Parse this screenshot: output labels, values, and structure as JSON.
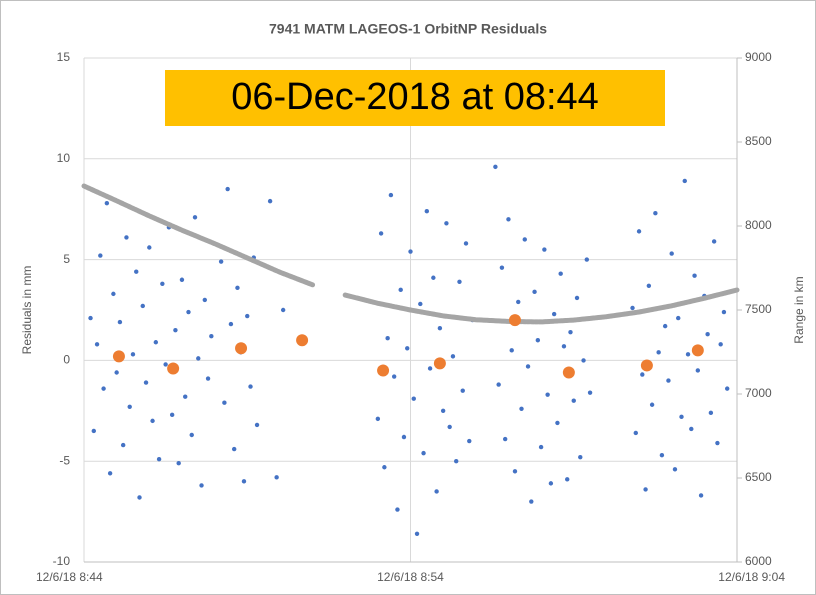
{
  "chart_data": {
    "type": "scatter",
    "title": "7941 MATM LAGEOS-1 OrbitNP Residuals",
    "annotation": "06-Dec-2018 at 08:44",
    "ylabel": "Residuals in mm",
    "y2label": "Range in km",
    "xlim": [
      524,
      544
    ],
    "xticks": [
      {
        "value": 524,
        "label": "12/6/18 8:44"
      },
      {
        "value": 534,
        "label": "12/6/18 8:54"
      },
      {
        "value": 544,
        "label": "12/6/18 9:04"
      }
    ],
    "ylim": [
      -10,
      15
    ],
    "yticks": [
      -10,
      -5,
      0,
      5,
      10,
      15
    ],
    "y2lim": [
      6000,
      9000
    ],
    "y2ticks": [
      6000,
      6500,
      7000,
      7500,
      8000,
      8500,
      9000
    ],
    "grid": true,
    "series": [
      {
        "color": "#4472c4",
        "marker": "dot",
        "x": [
          524.2,
          524.3,
          524.4,
          524.5,
          524.6,
          524.7,
          524.8,
          524.9,
          525.0,
          525.1,
          525.2,
          525.3,
          525.4,
          525.5,
          525.6,
          525.7,
          525.8,
          525.9,
          526.0,
          526.1,
          526.2,
          526.3,
          526.4,
          526.5,
          526.6,
          526.7,
          526.8,
          526.9,
          527.0,
          527.1,
          527.2,
          527.3,
          527.4,
          527.5,
          527.6,
          527.7,
          527.8,
          527.9,
          528.2,
          528.3,
          528.4,
          528.5,
          528.6,
          528.7,
          528.8,
          528.9,
          529.0,
          529.1,
          529.2,
          529.3,
          529.7,
          529.9,
          530.1,
          533.0,
          533.1,
          533.2,
          533.3,
          533.4,
          533.5,
          533.6,
          533.7,
          533.8,
          533.9,
          534.0,
          534.1,
          534.2,
          534.3,
          534.4,
          534.5,
          534.6,
          534.7,
          534.8,
          534.9,
          535.0,
          535.1,
          535.2,
          535.3,
          535.4,
          535.5,
          535.6,
          535.7,
          535.8,
          535.9,
          536.6,
          536.7,
          536.8,
          536.9,
          537.0,
          537.1,
          537.2,
          537.3,
          537.4,
          537.5,
          537.6,
          537.7,
          537.8,
          537.9,
          538.0,
          538.1,
          538.2,
          538.3,
          538.4,
          538.5,
          538.6,
          538.7,
          538.8,
          538.9,
          539.0,
          539.1,
          539.2,
          539.3,
          539.4,
          539.5,
          540.8,
          540.9,
          541.0,
          541.1,
          541.2,
          541.3,
          541.4,
          541.5,
          541.6,
          541.7,
          541.8,
          541.9,
          542.0,
          542.1,
          542.2,
          542.3,
          542.4,
          542.5,
          542.6,
          542.7,
          542.8,
          542.9,
          543.0,
          543.1,
          543.2,
          543.3,
          543.4,
          543.5,
          543.6,
          543.7
        ],
        "values": [
          2.1,
          -3.5,
          0.8,
          5.2,
          -1.4,
          7.8,
          -5.6,
          3.3,
          -0.6,
          1.9,
          -4.2,
          6.1,
          -2.3,
          0.3,
          4.4,
          -6.8,
          2.7,
          -1.1,
          5.6,
          -3.0,
          0.9,
          -4.9,
          3.8,
          -0.2,
          6.6,
          -2.7,
          1.5,
          -5.1,
          4.0,
          -1.8,
          2.4,
          -3.7,
          7.1,
          0.1,
          -6.2,
          3.0,
          -0.9,
          1.2,
          4.9,
          -2.1,
          8.5,
          1.8,
          -4.4,
          3.6,
          0.4,
          -6.0,
          2.2,
          -1.3,
          5.1,
          -3.2,
          7.9,
          -5.8,
          2.5,
          -2.9,
          6.3,
          -5.3,
          1.1,
          8.2,
          -0.8,
          -7.4,
          3.5,
          -3.8,
          0.6,
          5.4,
          -1.9,
          -8.6,
          2.8,
          -4.6,
          7.4,
          -0.4,
          4.1,
          -6.5,
          1.6,
          -2.5,
          6.8,
          -3.3,
          0.2,
          -5.0,
          3.9,
          -1.5,
          5.8,
          -4.0,
          2.0,
          9.6,
          -1.2,
          4.6,
          -3.9,
          7.0,
          0.5,
          -5.5,
          2.9,
          -2.4,
          6.0,
          -0.3,
          -7.0,
          3.4,
          1.0,
          -4.3,
          5.5,
          -1.7,
          -6.1,
          2.3,
          -3.1,
          4.3,
          0.7,
          -5.9,
          1.4,
          -2.0,
          3.1,
          -4.8,
          0.0,
          5.0,
          -1.6,
          2.6,
          -3.6,
          6.4,
          -0.7,
          -6.4,
          3.7,
          -2.2,
          7.3,
          0.4,
          -4.7,
          1.7,
          -1.0,
          5.3,
          -5.4,
          2.1,
          -2.8,
          8.9,
          0.3,
          -3.4,
          4.2,
          -0.5,
          -6.7,
          3.2,
          1.3,
          -2.6,
          5.9,
          -4.1,
          0.8,
          2.4,
          -1.4
        ]
      },
      {
        "color": "#a5a5a5",
        "marker": "line",
        "axis": "y2",
        "x": [
          524,
          525,
          526,
          527,
          528,
          529,
          530,
          531,
          531.5,
          532,
          533,
          534,
          535,
          536,
          537,
          538,
          539,
          540,
          541,
          542,
          543,
          544
        ],
        "values": [
          8238,
          8150,
          8060,
          7975,
          7895,
          7810,
          7725,
          7650,
          null,
          7589,
          7540,
          7500,
          7465,
          7442,
          7432,
          7429,
          7440,
          7460,
          7488,
          7525,
          7570,
          7619
        ]
      },
      {
        "color": "#ed7d31",
        "marker": "big",
        "x": [
          525.07,
          526.73,
          528.81,
          530.68,
          533.16,
          534.9,
          537.2,
          538.85,
          541.24,
          542.8
        ],
        "values": [
          0.2,
          -0.4,
          0.6,
          1.0,
          -0.5,
          -0.15,
          2.0,
          -0.6,
          -0.25,
          0.5
        ]
      }
    ]
  }
}
